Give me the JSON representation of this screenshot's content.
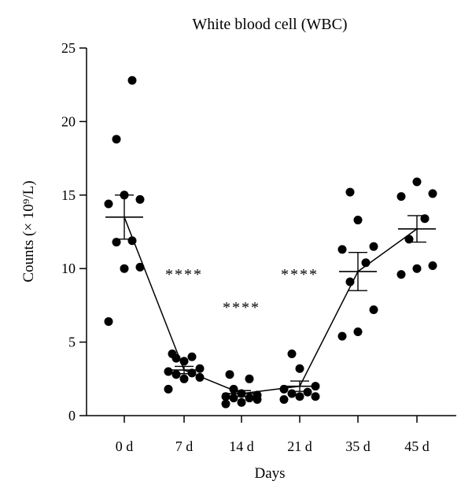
{
  "chart_data": {
    "type": "scatter",
    "title": "White blood cell (WBC)",
    "xlabel": "Days",
    "ylabel": "Counts (× 10⁹/L)",
    "ylim": [
      0,
      25
    ],
    "yticks": [
      0,
      5,
      10,
      15,
      20,
      25
    ],
    "categories": [
      "0 d",
      "7 d",
      "14 d",
      "21 d",
      "35 d",
      "45 d"
    ],
    "points": [
      [
        22.8,
        18.8,
        15.0,
        14.7,
        14.4,
        11.9,
        11.8,
        10.1,
        10.0,
        6.4
      ],
      [
        4.2,
        4.0,
        3.9,
        3.7,
        3.2,
        3.0,
        2.9,
        2.8,
        2.6,
        2.5,
        1.8
      ],
      [
        2.8,
        2.5,
        1.8,
        1.5,
        1.4,
        1.3,
        1.2,
        1.2,
        1.1,
        0.9,
        0.8
      ],
      [
        4.2,
        3.2,
        2.0,
        1.8,
        1.6,
        1.5,
        1.3,
        1.3,
        1.1
      ],
      [
        15.2,
        13.3,
        11.5,
        11.3,
        10.4,
        9.1,
        7.2,
        5.7,
        5.4
      ],
      [
        15.9,
        15.1,
        14.9,
        13.4,
        12.0,
        10.2,
        10.0,
        9.6
      ]
    ],
    "means": [
      13.5,
      3.1,
      1.5,
      2.0,
      9.8,
      12.7
    ],
    "sem": [
      1.5,
      0.25,
      0.2,
      0.35,
      1.3,
      0.9
    ],
    "significance": [
      {
        "category": "7 d",
        "label": "****"
      },
      {
        "category": "14 d",
        "label": "****"
      },
      {
        "category": "21 d",
        "label": "****"
      }
    ],
    "grid": false,
    "legend": "none"
  }
}
